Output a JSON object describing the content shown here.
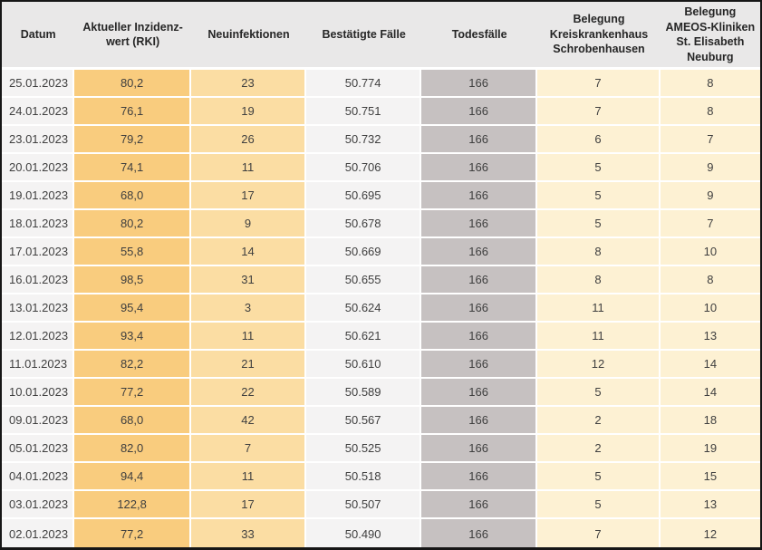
{
  "colors": {
    "header-bg": "#e9e8e8",
    "light-col": "#f4f3f3",
    "incidence-col": "#f9cc7e",
    "newinfections-col": "#fbdda3",
    "deaths-col": "#c6c1c1",
    "occupancy-col": "#fdf1d3",
    "row-separator": "#ffffff",
    "frame-border": "#161616",
    "text": "#3f3f3f"
  },
  "chart_data": {
    "type": "table",
    "columns": [
      "Datum",
      "Aktueller Inzidenz-\nwert (RKI)",
      "Neuinfektionen",
      "Bestätigte Fälle",
      "Todesfälle",
      "Belegung\nKreiskrankenhaus\nSchrobenhausen",
      "Belegung\nAMEOS-Kliniken\nSt. Elisabeth\nNeuburg"
    ],
    "rows": [
      [
        "25.01.2023",
        "80,2",
        "23",
        "50.774",
        "166",
        "7",
        "8"
      ],
      [
        "24.01.2023",
        "76,1",
        "19",
        "50.751",
        "166",
        "7",
        "8"
      ],
      [
        "23.01.2023",
        "79,2",
        "26",
        "50.732",
        "166",
        "6",
        "7"
      ],
      [
        "20.01.2023",
        "74,1",
        "11",
        "50.706",
        "166",
        "5",
        "9"
      ],
      [
        "19.01.2023",
        "68,0",
        "17",
        "50.695",
        "166",
        "5",
        "9"
      ],
      [
        "18.01.2023",
        "80,2",
        "9",
        "50.678",
        "166",
        "5",
        "7"
      ],
      [
        "17.01.2023",
        "55,8",
        "14",
        "50.669",
        "166",
        "8",
        "10"
      ],
      [
        "16.01.2023",
        "98,5",
        "31",
        "50.655",
        "166",
        "8",
        "8"
      ],
      [
        "13.01.2023",
        "95,4",
        "3",
        "50.624",
        "166",
        "11",
        "10"
      ],
      [
        "12.01.2023",
        "93,4",
        "11",
        "50.621",
        "166",
        "11",
        "13"
      ],
      [
        "11.01.2023",
        "82,2",
        "21",
        "50.610",
        "166",
        "12",
        "14"
      ],
      [
        "10.01.2023",
        "77,2",
        "22",
        "50.589",
        "166",
        "5",
        "14"
      ],
      [
        "09.01.2023",
        "68,0",
        "42",
        "50.567",
        "166",
        "2",
        "18"
      ],
      [
        "05.01.2023",
        "82,0",
        "7",
        "50.525",
        "166",
        "2",
        "19"
      ],
      [
        "04.01.2023",
        "94,4",
        "11",
        "50.518",
        "166",
        "5",
        "15"
      ],
      [
        "03.01.2023",
        "122,8",
        "17",
        "50.507",
        "166",
        "5",
        "13"
      ],
      [
        "02.01.2023",
        "77,2",
        "33",
        "50.490",
        "166",
        "7",
        "12"
      ]
    ]
  }
}
